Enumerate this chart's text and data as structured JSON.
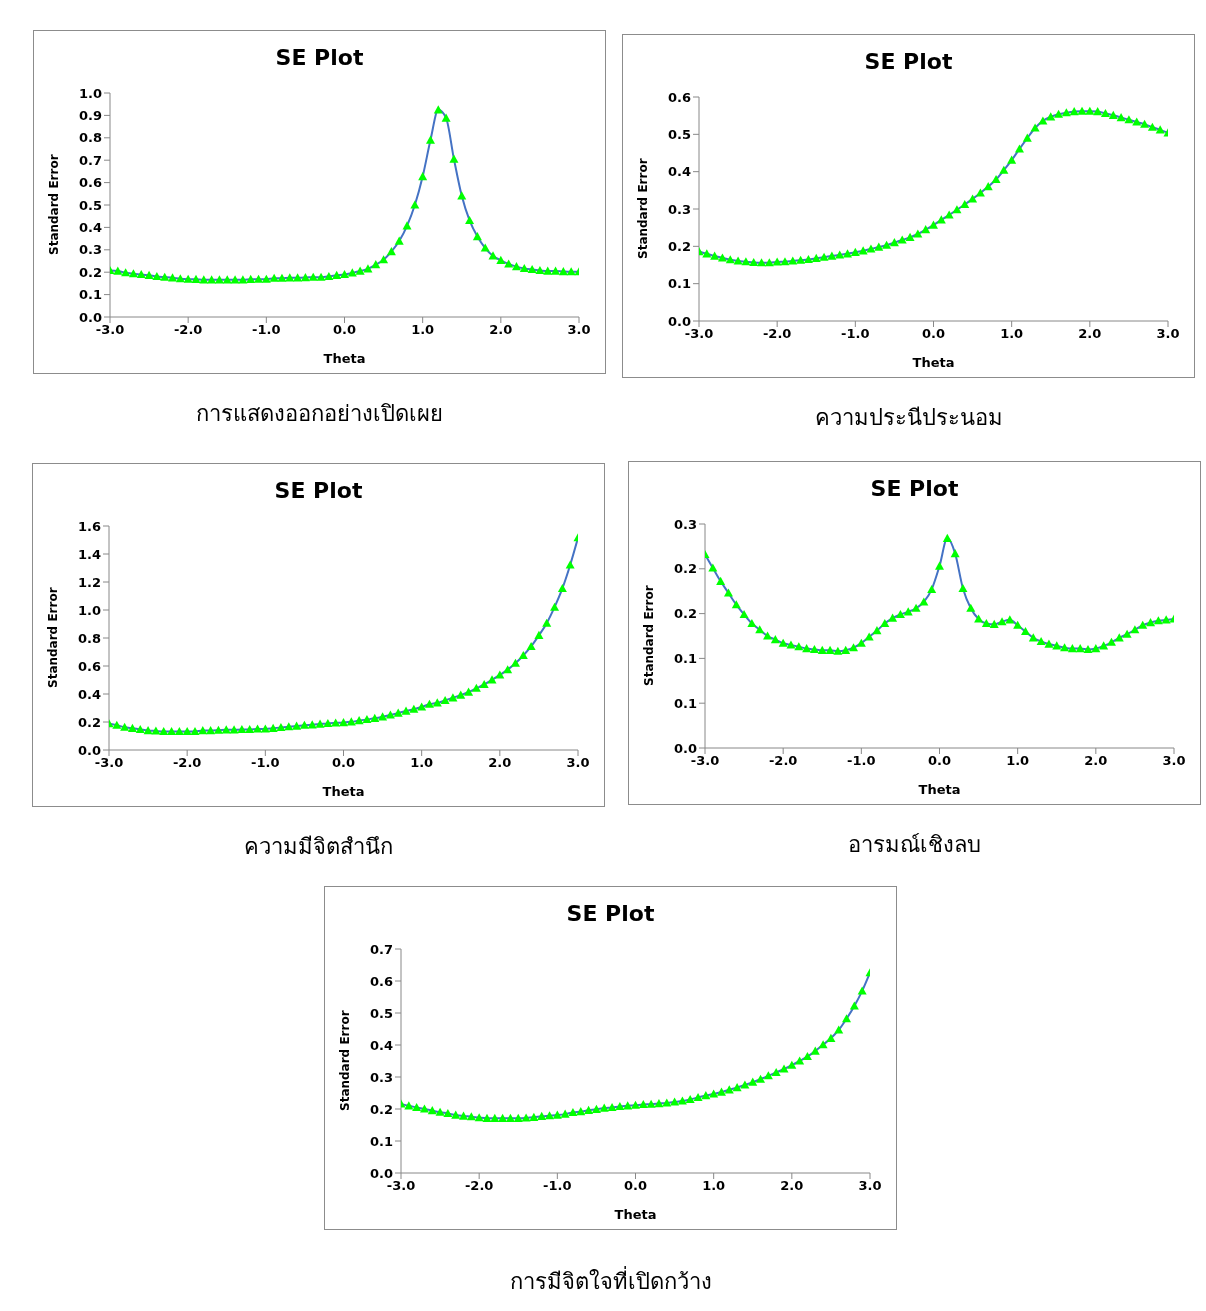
{
  "chart_data": [
    {
      "type": "line",
      "title": "SE Plot",
      "xlabel": "Theta",
      "ylabel": "Standard Error",
      "marker": "triangle",
      "grid": false,
      "legend": false,
      "annotations": [
        "การแสดงออกอย่างเปิดเผย"
      ],
      "x": [
        -3,
        -2.9,
        -2.8,
        -2.7,
        -2.6,
        -2.5,
        -2.4,
        -2.3,
        -2.2,
        -2.1,
        -2,
        -1.9,
        -1.8,
        -1.7,
        -1.6,
        -1.5,
        -1.4,
        -1.3,
        -1.2,
        -1.1,
        -1,
        -0.9,
        -0.8,
        -0.7,
        -0.6,
        -0.5,
        -0.4,
        -0.3,
        -0.2,
        -0.1,
        0,
        0.1,
        0.2,
        0.3,
        0.4,
        0.5,
        0.6,
        0.7,
        0.8,
        0.9,
        1,
        1.1,
        1.2,
        1.3,
        1.4,
        1.5,
        1.6,
        1.7,
        1.8,
        1.9,
        2,
        2.1,
        2.2,
        2.3,
        2.4,
        2.5,
        2.6,
        2.7,
        2.8,
        2.9,
        3
      ],
      "xlim": [
        -3,
        3
      ],
      "xticks": [
        {
          "value": -3,
          "label": "-3.0"
        },
        {
          "value": -2,
          "label": "-2.0"
        },
        {
          "value": -1,
          "label": "-1.0"
        },
        {
          "value": 0,
          "label": "0.0"
        },
        {
          "value": 1,
          "label": "1.0"
        },
        {
          "value": 2,
          "label": "2.0"
        },
        {
          "value": 3,
          "label": "3.0"
        }
      ],
      "ylim": [
        0,
        1
      ],
      "yticks": [
        {
          "value": 0,
          "label": "0.0"
        },
        0.1,
        0.2,
        0.3,
        0.4,
        0.5,
        0.6,
        0.7,
        0.8,
        0.9,
        {
          "value": 1,
          "label": "1.0"
        }
      ],
      "series": [
        {
          "color": "#4472c4",
          "values": [
            0.208,
            0.205,
            0.198,
            0.193,
            0.19,
            0.186,
            0.181,
            0.178,
            0.175,
            0.171,
            0.169,
            0.168,
            0.166,
            0.166,
            0.166,
            0.166,
            0.166,
            0.166,
            0.168,
            0.169,
            0.169,
            0.173,
            0.173,
            0.175,
            0.175,
            0.176,
            0.178,
            0.178,
            0.181,
            0.186,
            0.19,
            0.197,
            0.205,
            0.215,
            0.234,
            0.256,
            0.292,
            0.339,
            0.407,
            0.5,
            0.627,
            0.79,
            0.925,
            0.888,
            0.705,
            0.541,
            0.431,
            0.359,
            0.308,
            0.273,
            0.253,
            0.237,
            0.225,
            0.217,
            0.212,
            0.208,
            0.205,
            0.205,
            0.203,
            0.202,
            0.202
          ]
        }
      ]
    },
    {
      "type": "line",
      "title": "SE Plot",
      "xlabel": "Theta",
      "ylabel": "Standard Error",
      "marker": "triangle",
      "grid": false,
      "legend": false,
      "annotations": [
        "ความประนีประนอม"
      ],
      "x": [
        -3,
        -2.9,
        -2.8,
        -2.7,
        -2.6,
        -2.5,
        -2.4,
        -2.3,
        -2.2,
        -2.1,
        -2,
        -1.9,
        -1.8,
        -1.7,
        -1.6,
        -1.5,
        -1.4,
        -1.3,
        -1.2,
        -1.1,
        -1,
        -0.9,
        -0.8,
        -0.7,
        -0.6,
        -0.5,
        -0.4,
        -0.3,
        -0.2,
        -0.1,
        0,
        0.1,
        0.2,
        0.3,
        0.4,
        0.5,
        0.6,
        0.7,
        0.8,
        0.9,
        1,
        1.1,
        1.2,
        1.3,
        1.4,
        1.5,
        1.6,
        1.7,
        1.8,
        1.9,
        2,
        2.1,
        2.2,
        2.3,
        2.4,
        2.5,
        2.6,
        2.7,
        2.8,
        2.9,
        3
      ],
      "xlim": [
        -3,
        3
      ],
      "xticks": [
        {
          "value": -3,
          "label": "-3.0"
        },
        {
          "value": -2,
          "label": "-2.0"
        },
        {
          "value": -1,
          "label": "-1.0"
        },
        {
          "value": 0,
          "label": "0.0"
        },
        {
          "value": 1,
          "label": "1.0"
        },
        {
          "value": 2,
          "label": "2.0"
        },
        {
          "value": 3,
          "label": "3.0"
        }
      ],
      "ylim": [
        0,
        0.6
      ],
      "yticks": [
        {
          "value": 0,
          "label": "0.0"
        },
        0.1,
        0.2,
        0.3,
        0.4,
        0.5,
        0.6
      ],
      "series": [
        {
          "color": "#4472c4",
          "values": [
            0.186,
            0.18,
            0.174,
            0.169,
            0.164,
            0.161,
            0.159,
            0.157,
            0.156,
            0.156,
            0.158,
            0.159,
            0.161,
            0.163,
            0.165,
            0.168,
            0.171,
            0.174,
            0.177,
            0.18,
            0.184,
            0.188,
            0.193,
            0.198,
            0.203,
            0.21,
            0.217,
            0.224,
            0.233,
            0.245,
            0.257,
            0.271,
            0.284,
            0.298,
            0.312,
            0.327,
            0.343,
            0.36,
            0.379,
            0.404,
            0.431,
            0.461,
            0.49,
            0.517,
            0.536,
            0.547,
            0.554,
            0.558,
            0.561,
            0.562,
            0.562,
            0.561,
            0.556,
            0.551,
            0.545,
            0.539,
            0.533,
            0.527,
            0.519,
            0.512,
            0.504
          ]
        }
      ]
    },
    {
      "type": "line",
      "title": "SE Plot",
      "xlabel": "Theta",
      "ylabel": "Standard Error",
      "marker": "triangle",
      "grid": false,
      "legend": false,
      "annotations": [
        "ความมีจิตสำนึก"
      ],
      "x": [
        -3,
        -2.9,
        -2.8,
        -2.7,
        -2.6,
        -2.5,
        -2.4,
        -2.3,
        -2.2,
        -2.1,
        -2,
        -1.9,
        -1.8,
        -1.7,
        -1.6,
        -1.5,
        -1.4,
        -1.3,
        -1.2,
        -1.1,
        -1,
        -0.9,
        -0.8,
        -0.7,
        -0.6,
        -0.5,
        -0.4,
        -0.3,
        -0.2,
        -0.1,
        0,
        0.1,
        0.2,
        0.3,
        0.4,
        0.5,
        0.6,
        0.7,
        0.8,
        0.9,
        1,
        1.1,
        1.2,
        1.3,
        1.4,
        1.5,
        1.6,
        1.7,
        1.8,
        1.9,
        2,
        2.1,
        2.2,
        2.3,
        2.4,
        2.5,
        2.6,
        2.7,
        2.8,
        2.9,
        3
      ],
      "xlim": [
        -3,
        3
      ],
      "xticks": [
        {
          "value": -3,
          "label": "-3.0"
        },
        {
          "value": -2,
          "label": "-2.0"
        },
        {
          "value": -1,
          "label": "-1.0"
        },
        {
          "value": 0,
          "label": "0.0"
        },
        {
          "value": 1,
          "label": "1.0"
        },
        {
          "value": 2,
          "label": "2.0"
        },
        {
          "value": 3,
          "label": "3.0"
        }
      ],
      "ylim": [
        0,
        1.6
      ],
      "yticks": [
        {
          "value": 0,
          "label": "0.0"
        },
        0.2,
        0.4,
        0.6,
        0.8,
        {
          "value": 1,
          "label": "1.0"
        },
        1.2,
        1.4,
        1.6
      ],
      "series": [
        {
          "color": "#4472c4",
          "values": [
            0.188,
            0.177,
            0.163,
            0.155,
            0.147,
            0.139,
            0.136,
            0.133,
            0.133,
            0.133,
            0.133,
            0.133,
            0.139,
            0.139,
            0.141,
            0.144,
            0.144,
            0.147,
            0.147,
            0.15,
            0.15,
            0.155,
            0.161,
            0.166,
            0.171,
            0.177,
            0.18,
            0.185,
            0.19,
            0.193,
            0.196,
            0.201,
            0.21,
            0.218,
            0.226,
            0.237,
            0.25,
            0.264,
            0.278,
            0.291,
            0.307,
            0.327,
            0.337,
            0.354,
            0.373,
            0.392,
            0.414,
            0.441,
            0.468,
            0.501,
            0.536,
            0.574,
            0.62,
            0.675,
            0.74,
            0.819,
            0.906,
            1.02,
            1.154,
            1.322,
            1.516
          ]
        }
      ]
    },
    {
      "type": "line",
      "title": "SE Plot",
      "xlabel": "Theta",
      "ylabel": "Standard Error",
      "marker": "triangle",
      "grid": false,
      "legend": false,
      "annotations": [
        "อารมณ์เชิงลบ"
      ],
      "x": [
        -3,
        -2.9,
        -2.8,
        -2.7,
        -2.6,
        -2.5,
        -2.4,
        -2.3,
        -2.2,
        -2.1,
        -2,
        -1.9,
        -1.8,
        -1.7,
        -1.6,
        -1.5,
        -1.4,
        -1.3,
        -1.2,
        -1.1,
        -1,
        -0.9,
        -0.8,
        -0.7,
        -0.6,
        -0.5,
        -0.4,
        -0.3,
        -0.2,
        -0.1,
        0,
        0.1,
        0.2,
        0.3,
        0.4,
        0.5,
        0.6,
        0.7,
        0.8,
        0.9,
        1,
        1.1,
        1.2,
        1.3,
        1.4,
        1.5,
        1.6,
        1.7,
        1.8,
        1.9,
        2,
        2.1,
        2.2,
        2.3,
        2.4,
        2.5,
        2.6,
        2.7,
        2.8,
        2.9,
        3
      ],
      "xlim": [
        -3,
        3
      ],
      "xticks": [
        {
          "value": -3,
          "label": "-3.0"
        },
        {
          "value": -2,
          "label": "-2.0"
        },
        {
          "value": -1,
          "label": "-1.0"
        },
        {
          "value": 0,
          "label": "0.0"
        },
        {
          "value": 1,
          "label": "1.0"
        },
        {
          "value": 2,
          "label": "2.0"
        },
        {
          "value": 3,
          "label": "3.0"
        }
      ],
      "ylim": [
        0,
        0.25
      ],
      "yticks": [
        {
          "value": 0,
          "label": "0.0"
        },
        {
          "value": 0.05,
          "label": "0.1"
        },
        {
          "value": 0.1,
          "label": "0.1"
        },
        {
          "value": 0.15,
          "label": "0.2"
        },
        {
          "value": 0.2,
          "label": "0.2"
        },
        {
          "value": 0.25,
          "label": "0.3"
        }
      ],
      "series": [
        {
          "color": "#4472c4",
          "values": [
            0.216,
            0.201,
            0.186,
            0.173,
            0.16,
            0.149,
            0.139,
            0.132,
            0.125,
            0.121,
            0.117,
            0.115,
            0.113,
            0.111,
            0.11,
            0.109,
            0.109,
            0.108,
            0.109,
            0.112,
            0.117,
            0.124,
            0.131,
            0.139,
            0.145,
            0.149,
            0.152,
            0.156,
            0.163,
            0.177,
            0.203,
            0.234,
            0.217,
            0.178,
            0.156,
            0.144,
            0.139,
            0.138,
            0.141,
            0.143,
            0.137,
            0.13,
            0.123,
            0.119,
            0.116,
            0.114,
            0.112,
            0.111,
            0.111,
            0.11,
            0.111,
            0.114,
            0.118,
            0.123,
            0.127,
            0.132,
            0.137,
            0.14,
            0.142,
            0.143,
            0.144
          ]
        }
      ]
    },
    {
      "type": "line",
      "title": "SE Plot",
      "xlabel": "Theta",
      "ylabel": "Standard Error",
      "marker": "triangle",
      "grid": false,
      "legend": false,
      "annotations": [
        "การมีจิตใจที่เปิดกว้าง"
      ],
      "x": [
        -3,
        -2.9,
        -2.8,
        -2.7,
        -2.6,
        -2.5,
        -2.4,
        -2.3,
        -2.2,
        -2.1,
        -2,
        -1.9,
        -1.8,
        -1.7,
        -1.6,
        -1.5,
        -1.4,
        -1.3,
        -1.2,
        -1.1,
        -1,
        -0.9,
        -0.8,
        -0.7,
        -0.6,
        -0.5,
        -0.4,
        -0.3,
        -0.2,
        -0.1,
        0,
        0.1,
        0.2,
        0.3,
        0.4,
        0.5,
        0.6,
        0.7,
        0.8,
        0.9,
        1,
        1.1,
        1.2,
        1.3,
        1.4,
        1.5,
        1.6,
        1.7,
        1.8,
        1.9,
        2,
        2.1,
        2.2,
        2.3,
        2.4,
        2.5,
        2.6,
        2.7,
        2.8,
        2.9,
        3
      ],
      "xlim": [
        -3,
        3
      ],
      "xticks": [
        {
          "value": -3,
          "label": "-3.0"
        },
        {
          "value": -2,
          "label": "-2.0"
        },
        {
          "value": -1,
          "label": "-1.0"
        },
        {
          "value": 0,
          "label": "0.0"
        },
        {
          "value": 1,
          "label": "1.0"
        },
        {
          "value": 2,
          "label": "2.0"
        },
        {
          "value": 3,
          "label": "3.0"
        }
      ],
      "ylim": [
        0,
        0.7
      ],
      "yticks": [
        {
          "value": 0,
          "label": "0.0"
        },
        0.1,
        0.2,
        0.3,
        0.4,
        0.5,
        0.6,
        0.7
      ],
      "series": [
        {
          "color": "#4472c4",
          "values": [
            0.216,
            0.21,
            0.205,
            0.2,
            0.195,
            0.19,
            0.186,
            0.181,
            0.178,
            0.176,
            0.173,
            0.171,
            0.171,
            0.171,
            0.171,
            0.171,
            0.172,
            0.174,
            0.177,
            0.179,
            0.181,
            0.184,
            0.189,
            0.192,
            0.196,
            0.199,
            0.203,
            0.205,
            0.208,
            0.21,
            0.212,
            0.214,
            0.215,
            0.217,
            0.219,
            0.222,
            0.225,
            0.23,
            0.236,
            0.242,
            0.247,
            0.253,
            0.26,
            0.267,
            0.275,
            0.284,
            0.293,
            0.304,
            0.314,
            0.325,
            0.337,
            0.35,
            0.364,
            0.381,
            0.401,
            0.421,
            0.447,
            0.482,
            0.522,
            0.569,
            0.626
          ]
        }
      ]
    }
  ]
}
